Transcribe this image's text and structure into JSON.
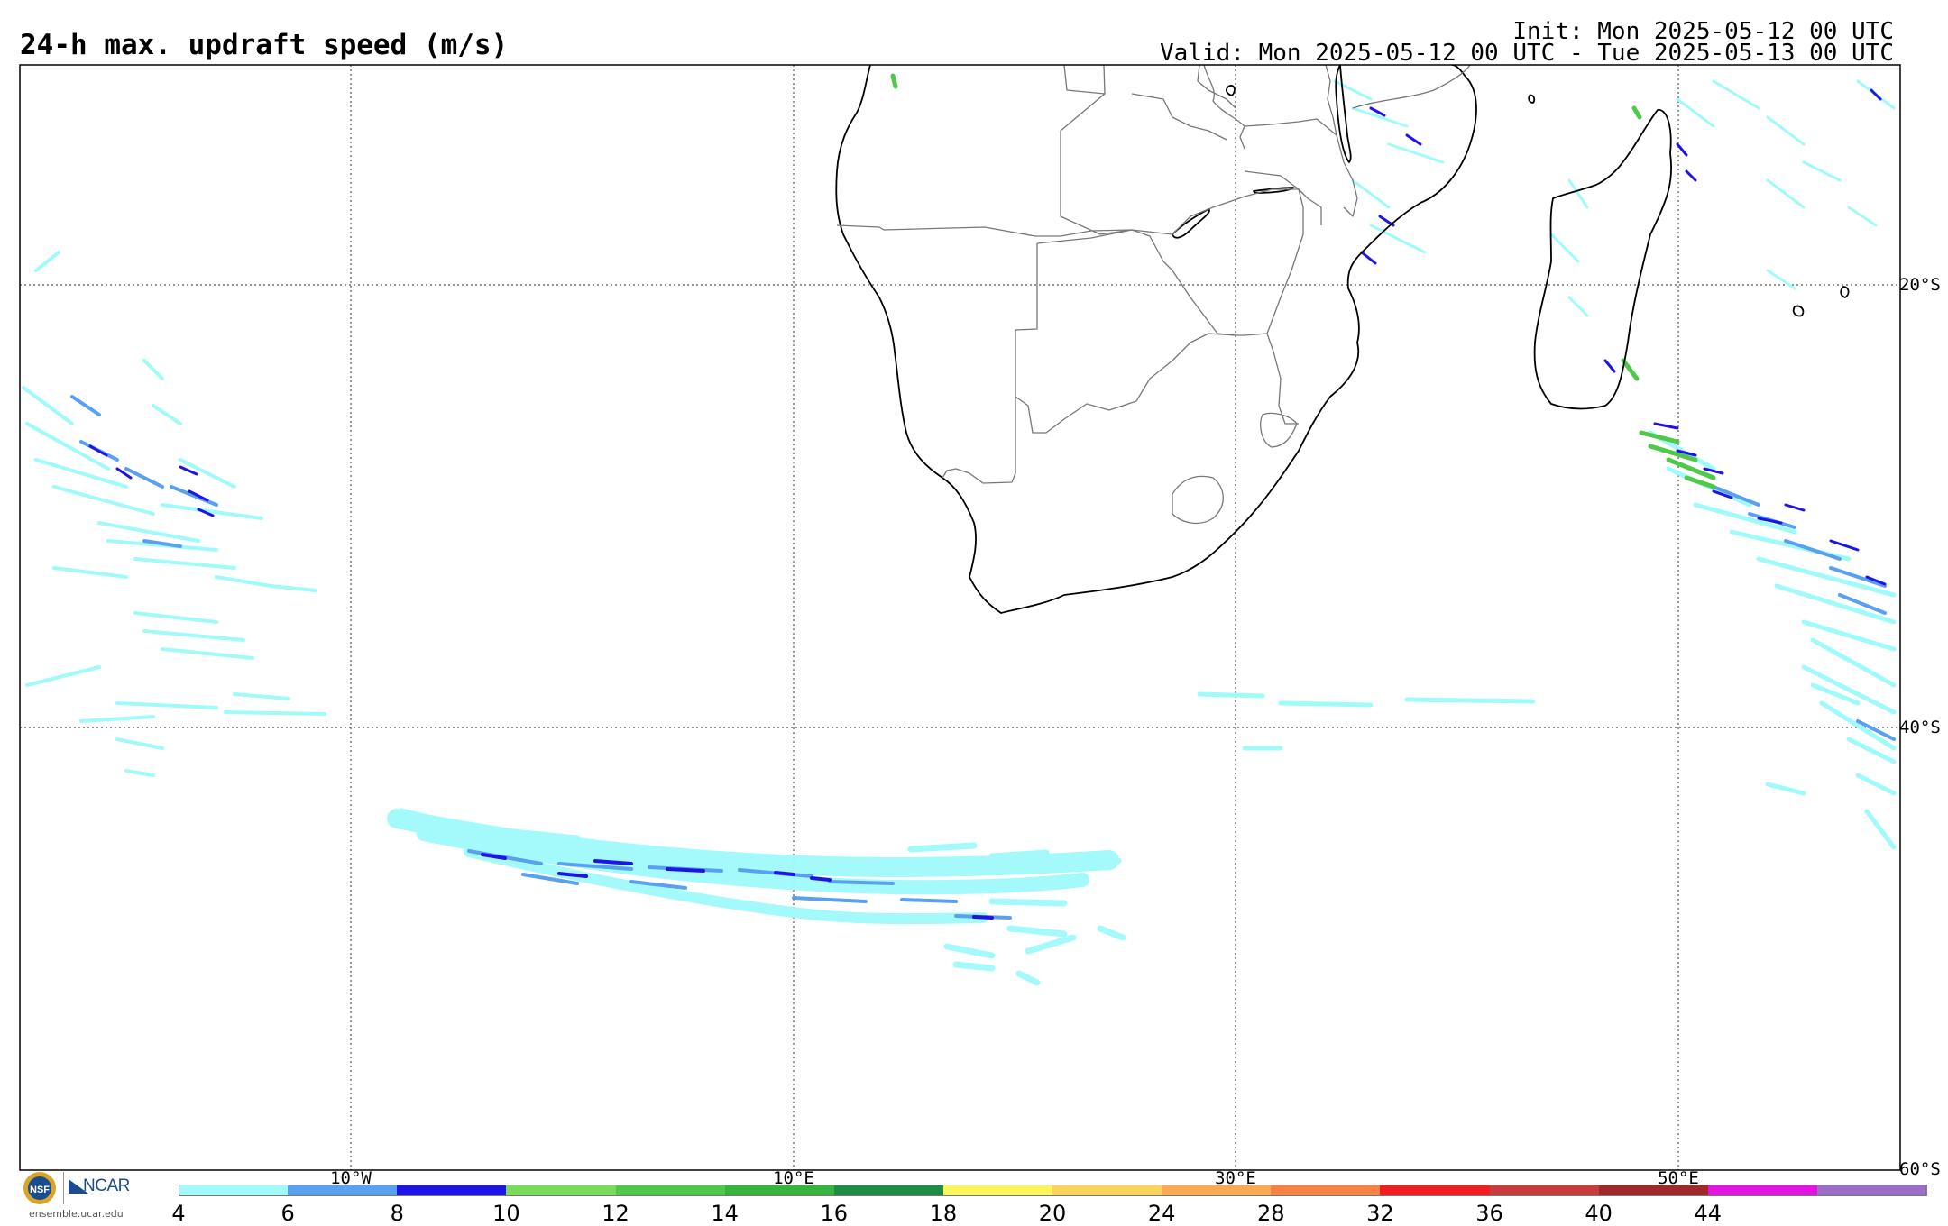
{
  "header": {
    "title": "24-h max. updraft speed (m/s)",
    "init": "Init: Mon 2025-05-12 00 UTC",
    "valid": "Valid: Mon 2025-05-12 00 UTC - Tue 2025-05-13 00 UTC"
  },
  "map": {
    "grid_lon_labels": [
      "10°W",
      "10°E",
      "30°E",
      "50°E"
    ],
    "grid_lat_labels": [
      "20°S",
      "40°S",
      "60°S"
    ]
  },
  "colorbar": {
    "labels": [
      "4",
      "6",
      "8",
      "10",
      "12",
      "14",
      "16",
      "18",
      "20",
      "24",
      "28",
      "32",
      "36",
      "40",
      "44"
    ],
    "colors": [
      "#a0fafa",
      "#5aa0f0",
      "#1e14e6",
      "#78dc5a",
      "#50c84a",
      "#37b43c",
      "#1e8c46",
      "#faf55a",
      "#fad25a",
      "#faaa50",
      "#f88246",
      "#f01e1e",
      "#c83c3c",
      "#a02828",
      "#e114e1",
      "#9b6ec8"
    ]
  },
  "logo": {
    "brand": "NCAR",
    "seal": "NSF",
    "url": "ensemble.ucar.edu",
    "colors": {
      "ncar_blue": "#1b4c8c"
    }
  }
}
